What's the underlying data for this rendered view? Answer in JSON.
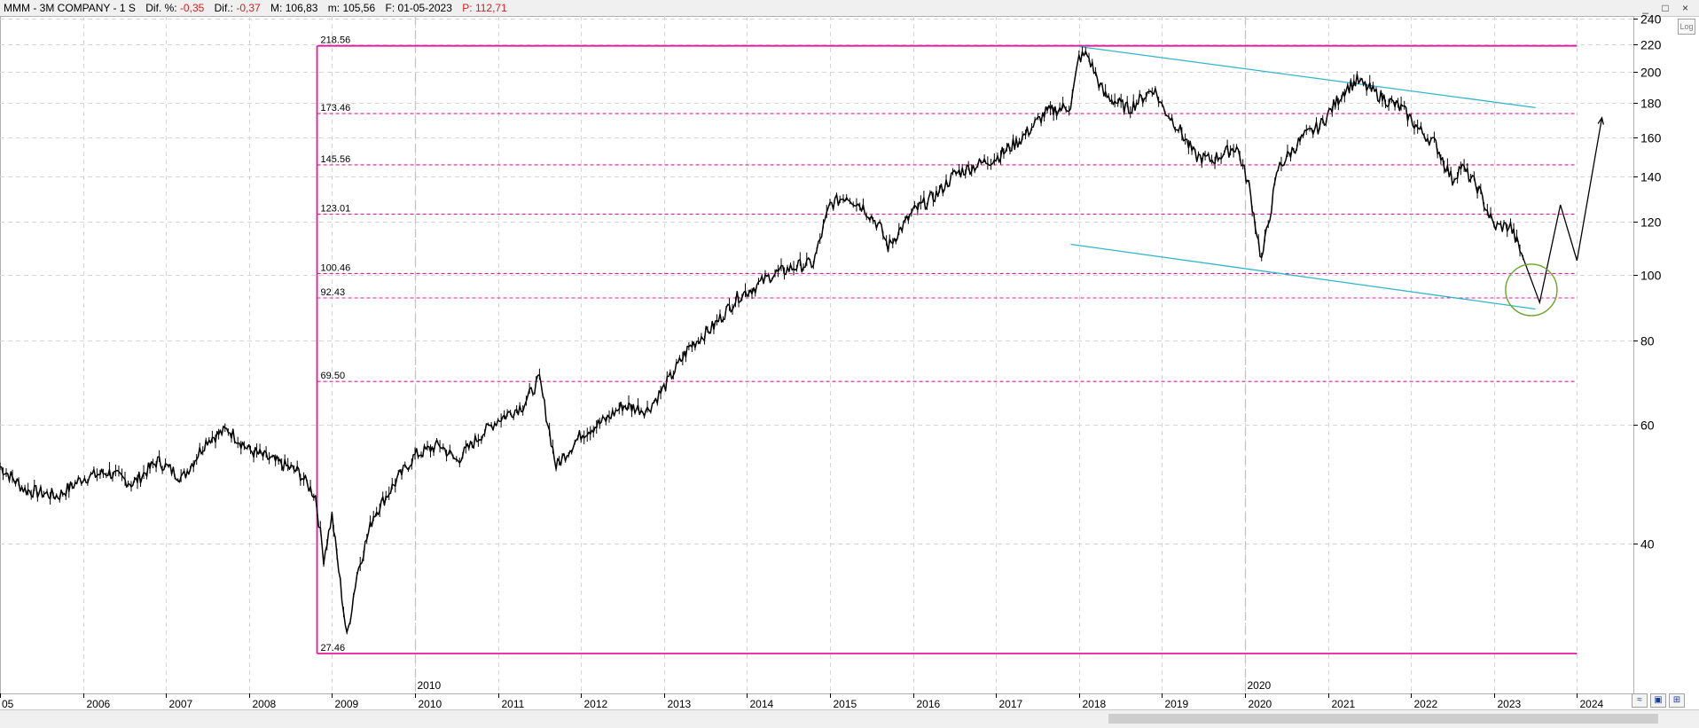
{
  "header": {
    "symbol": "MMM - 3M COMPANY - ",
    "timeframe": "1 S",
    "dif_pct_label": "Dif. %:",
    "dif_pct_value": "-0,35",
    "dif_label": "Dif.:",
    "dif_value": "-0,37",
    "max_label": "M:",
    "max_value": "106,83",
    "min_label": "m:",
    "min_value": "105,56",
    "date_label": "F:",
    "date_value": "01-05-2023",
    "price_label": "P:",
    "price_value": "112,71",
    "window_controls": "_ □ ×"
  },
  "log_button": "Log",
  "colors": {
    "magenta": "#e8189b",
    "trendline": "#2fb5cc",
    "circle": "#6aa32a",
    "price": "#000000",
    "grid": "#d6d6d6",
    "negative": "#d42020"
  },
  "chart_data": {
    "type": "line",
    "scale": "log",
    "ylim": [
      22,
      245
    ],
    "y_ticks": [
      40,
      60,
      80,
      100,
      120,
      140,
      160,
      180,
      200,
      220,
      240
    ],
    "x_ticks": [
      "05",
      "2006",
      "2007",
      "2008",
      "2009",
      "2010",
      "2011",
      "2012",
      "2013",
      "2014",
      "2015",
      "2016",
      "2017",
      "2018",
      "2019",
      "2020",
      "2021",
      "2022",
      "2023",
      "2024"
    ],
    "x_extra_labels": [
      "2010",
      "2020"
    ],
    "grid": true,
    "series": [
      {
        "values_x": [
          2005.0,
          2005.3,
          2005.7,
          2006.0,
          2006.3,
          2006.6,
          2006.9,
          2007.2,
          2007.5,
          2007.75,
          2008.0,
          2008.3,
          2008.6,
          2008.8,
          2008.9,
          2009.0,
          2009.18,
          2009.3,
          2009.5,
          2009.8,
          2010.0,
          2010.3,
          2010.5,
          2010.8,
          2011.0,
          2011.3,
          2011.5,
          2011.7,
          2012.0,
          2012.3,
          2012.5,
          2012.8,
          2013.0,
          2013.3,
          2013.6,
          2013.9,
          2014.1,
          2014.3,
          2014.6,
          2014.8,
          2015.0,
          2015.2,
          2015.4,
          2015.6,
          2015.7,
          2016.0,
          2016.3,
          2016.5,
          2016.8,
          2017.0,
          2017.3,
          2017.6,
          2017.9,
          2018.0,
          2018.1,
          2018.3,
          2018.6,
          2018.9,
          2019.0,
          2019.2,
          2019.4,
          2019.6,
          2019.9,
          2020.05,
          2020.2,
          2020.4,
          2020.7,
          2020.9,
          2021.2,
          2021.35,
          2021.6,
          2021.9,
          2022.1,
          2022.3,
          2022.5,
          2022.6,
          2022.8,
          2023.0,
          2023.2,
          2023.35
        ],
        "values_y": [
          52,
          48,
          47,
          50,
          51,
          49,
          53,
          50,
          57,
          59,
          55,
          53,
          51,
          47,
          38,
          44,
          29,
          36,
          44,
          50,
          54,
          56,
          53,
          58,
          61,
          64,
          70,
          52,
          58,
          61,
          64,
          63,
          68,
          78,
          84,
          93,
          96,
          100,
          103,
          104,
          127,
          131,
          126,
          118,
          110,
          124,
          132,
          141,
          146,
          149,
          159,
          174,
          178,
          210,
          212,
          185,
          176,
          189,
          178,
          165,
          150,
          148,
          155,
          135,
          105,
          144,
          160,
          166,
          188,
          194,
          185,
          176,
          164,
          156,
          138,
          145,
          135,
          118,
          118,
          106
        ],
        "name": ""
      }
    ],
    "fib_levels": [
      218.56,
      173.46,
      145.56,
      123.01,
      100.46,
      92.43,
      69.5,
      27.46
    ],
    "fib_labels": [
      "218.56",
      "173.46",
      "145.56",
      "123.01",
      "100.46",
      "92.43",
      "69.50",
      "27.46"
    ],
    "channel_upper": {
      "x": [
        2018.0,
        2023.5
      ],
      "y": [
        218,
        177
      ]
    },
    "channel_lower": {
      "x": [
        2017.9,
        2023.5
      ],
      "y": [
        111,
        89
      ]
    },
    "projection": {
      "x": [
        2023.35,
        2023.55,
        2023.8,
        2024.0,
        2024.3
      ],
      "y": [
        106,
        91,
        127,
        105,
        171
      ]
    },
    "circle_marker": {
      "x": 2023.45,
      "y": 95
    }
  }
}
